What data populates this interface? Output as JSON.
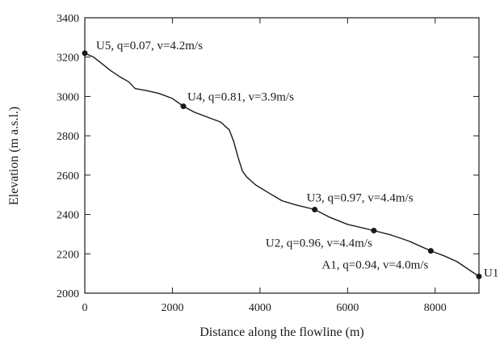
{
  "chart_data": {
    "type": "line",
    "xlabel": "Distance along the flowline (m)",
    "ylabel": "Elevation (m a.s.l.)",
    "xlim": [
      0,
      9000
    ],
    "ylim": [
      2000,
      3400
    ],
    "x_ticks": [
      0,
      2000,
      4000,
      6000,
      8000
    ],
    "y_ticks": [
      2000,
      2200,
      2400,
      2600,
      2800,
      3000,
      3200,
      3400
    ],
    "grid": false,
    "series": [
      {
        "x": [
          0,
          200,
          400,
          600,
          800,
          1000,
          1150,
          1400,
          1700,
          2000,
          2250,
          2500,
          2800,
          3100,
          3300,
          3400,
          3500,
          3600,
          3700,
          3900,
          4200,
          4500,
          4800,
          5250,
          5600,
          6000,
          6600,
          7000,
          7400,
          7900,
          8200,
          8500,
          8800,
          9000
        ],
        "y": [
          3220,
          3200,
          3165,
          3130,
          3100,
          3075,
          3040,
          3030,
          3015,
          2990,
          2950,
          2920,
          2895,
          2870,
          2830,
          2770,
          2690,
          2620,
          2590,
          2550,
          2510,
          2470,
          2450,
          2425,
          2385,
          2350,
          2318,
          2295,
          2265,
          2215,
          2190,
          2160,
          2115,
          2085
        ]
      }
    ],
    "points": [
      {
        "id": "U5",
        "x": 0,
        "y": 3220,
        "label": "U5, q=0.07, v=4.2m/s"
      },
      {
        "id": "U4",
        "x": 2250,
        "y": 2950,
        "label": "U4, q=0.81, v=3.9m/s"
      },
      {
        "id": "U3",
        "x": 5250,
        "y": 2425,
        "label": "U3, q=0.97, v=4.4m/s"
      },
      {
        "id": "U2",
        "x": 6600,
        "y": 2318,
        "label": "U2, q=0.96, v=4.4m/s"
      },
      {
        "id": "A1",
        "x": 7900,
        "y": 2215,
        "label": "A1, q=0.94, v=4.0m/s"
      },
      {
        "id": "U1",
        "x": 9000,
        "y": 2085,
        "label": "U1"
      }
    ]
  }
}
